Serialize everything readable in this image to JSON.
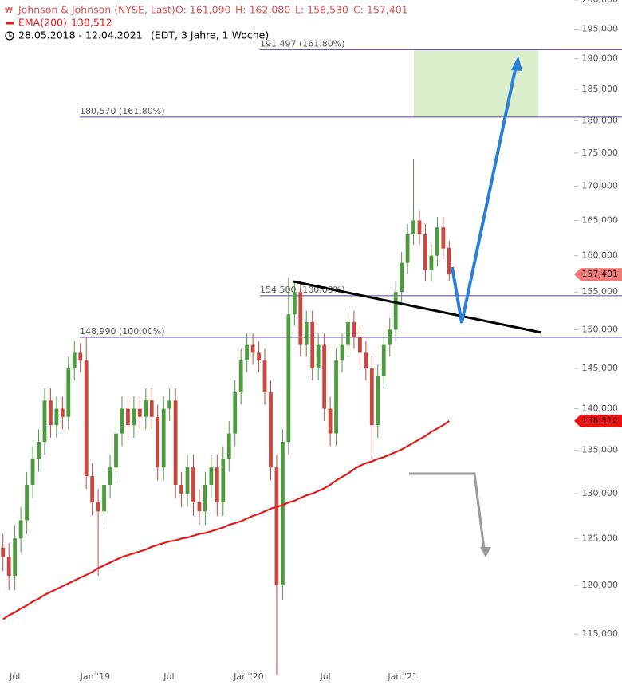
{
  "chart_data": {
    "type": "candlestick",
    "title": "Johnson & Johnson (NYSE, Last)",
    "ohlc_text": [
      "O: 161,090",
      "H: 162,080",
      "L: 156,530",
      "C: 157,401"
    ],
    "date_range": "28.05.2018 - 12.04.2021",
    "period": "(EDT, 3 Jahre, 1 Woche)",
    "up_color": "#4e9a3e",
    "down_color": "#c8483f",
    "open": [
      124000,
      123000,
      121000,
      125000,
      127000,
      131000,
      134000,
      136000,
      141000,
      138000,
      140000,
      139000,
      145000,
      147000,
      146000,
      132000,
      129000,
      128000,
      131000,
      133000,
      137000,
      140000,
      138000,
      140000,
      139000,
      141000,
      139000,
      133000,
      140000,
      141000,
      131000,
      130000,
      133000,
      129000,
      128000,
      131000,
      133000,
      129000,
      134000,
      137000,
      142000,
      146000,
      148000,
      147000,
      146000,
      142000,
      133000,
      120000,
      136000,
      152000,
      155000,
      148000,
      151000,
      145000,
      148000,
      140000,
      137000,
      146000,
      148000,
      151000,
      149000,
      147000,
      145000,
      138000,
      144000,
      148000,
      150000,
      155000,
      159000,
      163000,
      165000,
      163000,
      158000,
      160000,
      164000,
      161090
    ],
    "high": [
      125500,
      124500,
      126500,
      128500,
      132500,
      135500,
      137500,
      142500,
      142500,
      141500,
      141500,
      146500,
      148500,
      148200,
      148990,
      133500,
      130500,
      132500,
      134500,
      138500,
      141500,
      141500,
      141500,
      141500,
      142500,
      142500,
      140500,
      141500,
      142500,
      142500,
      132500,
      134500,
      134500,
      130500,
      132500,
      134500,
      134500,
      135500,
      138500,
      143500,
      147500,
      149500,
      149500,
      148500,
      147500,
      143500,
      134500,
      137500,
      157000,
      156500,
      156500,
      152500,
      152500,
      149500,
      149500,
      141500,
      147500,
      149500,
      152500,
      152500,
      150500,
      148500,
      146500,
      145500,
      149500,
      151500,
      156500,
      160500,
      164500,
      174000,
      166500,
      164500,
      161500,
      165500,
      165500,
      162080
    ],
    "low": [
      121500,
      119500,
      119500,
      123500,
      125500,
      129500,
      132500,
      134500,
      136500,
      136500,
      137500,
      137500,
      143500,
      144500,
      130500,
      127500,
      121000,
      126500,
      129500,
      131500,
      135500,
      136500,
      136500,
      137500,
      137500,
      137500,
      131500,
      131500,
      138500,
      129500,
      128500,
      128500,
      127500,
      126500,
      126500,
      129500,
      127500,
      127500,
      132500,
      135500,
      140500,
      144500,
      145500,
      144500,
      140500,
      131500,
      111000,
      118500,
      134500,
      150500,
      146500,
      146500,
      143500,
      143500,
      138500,
      135500,
      135500,
      144500,
      146500,
      147500,
      145500,
      143500,
      134000,
      136500,
      142500,
      146500,
      148500,
      153500,
      157500,
      161500,
      161500,
      156500,
      156500,
      158500,
      159500,
      156530
    ],
    "close": [
      123000,
      121000,
      125000,
      127000,
      131000,
      134000,
      136000,
      141000,
      138000,
      140000,
      139000,
      145000,
      147000,
      146000,
      132000,
      129000,
      128000,
      131000,
      133000,
      137000,
      140000,
      138000,
      140000,
      139000,
      141000,
      139000,
      133000,
      140000,
      141000,
      131000,
      130000,
      133000,
      129000,
      128000,
      131000,
      133000,
      129000,
      134000,
      137000,
      142000,
      146000,
      148000,
      147000,
      146000,
      142000,
      133000,
      120000,
      136000,
      152000,
      155000,
      148000,
      151000,
      145000,
      148000,
      140000,
      137000,
      146000,
      148000,
      151000,
      149000,
      147000,
      145000,
      138000,
      144000,
      148000,
      150000,
      155000,
      159000,
      163000,
      165000,
      163000,
      158000,
      160000,
      164000,
      161000,
      157401
    ],
    "ema": {
      "name": "EMA(200)",
      "color": "#e41a1a",
      "values": [
        116500,
        116900,
        117200,
        117600,
        117900,
        118300,
        118600,
        119000,
        119300,
        119600,
        119900,
        120200,
        120500,
        120800,
        121100,
        121400,
        121800,
        122100,
        122400,
        122700,
        123000,
        123200,
        123400,
        123600,
        123800,
        124100,
        124300,
        124500,
        124700,
        124800,
        125000,
        125100,
        125300,
        125500,
        125600,
        125800,
        126000,
        126200,
        126500,
        126700,
        126900,
        127200,
        127500,
        127700,
        128000,
        128300,
        128500,
        128700,
        129000,
        129200,
        129500,
        129800,
        130000,
        130300,
        130600,
        131000,
        131500,
        131900,
        132300,
        132800,
        133200,
        133500,
        133700,
        134000,
        134200,
        134500,
        134800,
        135100,
        135500,
        135900,
        136300,
        136700,
        137200,
        137600,
        138000,
        138512
      ]
    },
    "y_scale": "log",
    "ylim": [
      110000,
      200000
    ],
    "yticks": [
      {
        "value": 115000,
        "label": "115,000"
      },
      {
        "value": 120000,
        "label": "120,000"
      },
      {
        "value": 125000,
        "label": "125,000"
      },
      {
        "value": 130000,
        "label": "130,000"
      },
      {
        "value": 135000,
        "label": "135,000"
      },
      {
        "value": 140000,
        "label": "140,000"
      },
      {
        "value": 145000,
        "label": "145,000"
      },
      {
        "value": 150000,
        "label": "150,000"
      },
      {
        "value": 155000,
        "label": "155,000"
      },
      {
        "value": 160000,
        "label": "160,000"
      },
      {
        "value": 165000,
        "label": "165,000"
      },
      {
        "value": 170000,
        "label": "170,000"
      },
      {
        "value": 175000,
        "label": "175,000"
      },
      {
        "value": 180000,
        "label": "180,000"
      },
      {
        "value": 185000,
        "label": "185,000"
      },
      {
        "value": 190000,
        "label": "190,000"
      },
      {
        "value": 195000,
        "label": "195,000"
      },
      {
        "value": 200000,
        "label": "200,000"
      }
    ],
    "xlim": [
      -0.5,
      96
    ],
    "xticks": [
      {
        "value": 2,
        "label": "Jul"
      },
      {
        "value": 15.5,
        "label": "Jan '19"
      },
      {
        "value": 27.9,
        "label": "Jul"
      },
      {
        "value": 41.3,
        "label": "Jan '20"
      },
      {
        "value": 54.2,
        "label": "Jul"
      },
      {
        "value": 67.2,
        "label": "Jan '21"
      }
    ],
    "levels": [
      {
        "value": 191497,
        "label": "191,497 (161.80%)"
      },
      {
        "value": 180570,
        "label": "180,570 (161.80%)"
      },
      {
        "value": 154500,
        "label": "154,500 (100.00%)"
      },
      {
        "value": 148990,
        "label": "148,990 (100.00%)"
      }
    ],
    "level_color": "#5b3fa0",
    "zone_color": "#dcefcc",
    "badges": [
      {
        "value": 157401,
        "label": "157,401",
        "color": "#f07a78"
      },
      {
        "value": 138512,
        "label": "138,512",
        "color": "#ee1111"
      }
    ]
  }
}
